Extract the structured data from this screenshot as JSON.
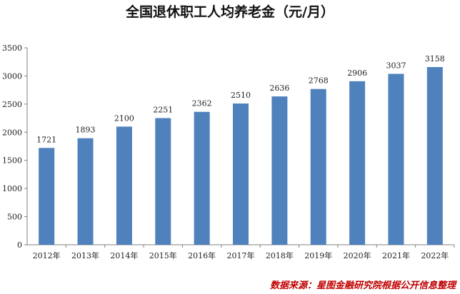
{
  "chart_data": {
    "type": "bar",
    "title": "全国退休职工人均养老金（元/月）",
    "categories": [
      "2012年",
      "2013年",
      "2014年",
      "2015年",
      "2016年",
      "2017年",
      "2018年",
      "2019年",
      "2020年",
      "2021年",
      "2022年"
    ],
    "values": [
      1721,
      1893,
      2100,
      2251,
      2362,
      2510,
      2636,
      2768,
      2906,
      3037,
      3158
    ],
    "data_labels": [
      "1721",
      "1893",
      "2100",
      "2251",
      "2362",
      "2510",
      "2636",
      "2768",
      "2906",
      "3037",
      "3158"
    ],
    "y_ticks": [
      "0",
      "500",
      "1000",
      "1500",
      "2000",
      "2500",
      "3000",
      "3500"
    ],
    "ylim": [
      0,
      3500
    ],
    "grid": false,
    "legend": "none",
    "bar_color": "#4f81bd"
  },
  "source_note": "数据来源：星图金融研究院根据公开信息整理"
}
